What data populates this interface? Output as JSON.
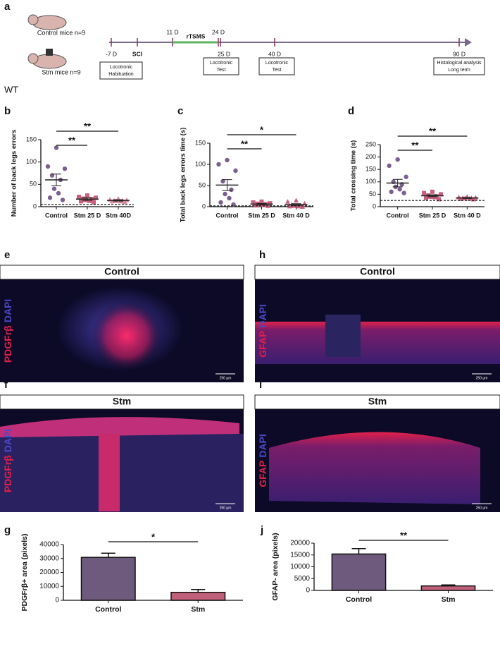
{
  "timeline": {
    "panel": "a",
    "groups": [
      "Control mice n=9",
      "Stm mice n=9"
    ],
    "marks": [
      "-7 D",
      "SCI",
      "11 D",
      "24 D",
      "25 D",
      "40 D",
      "90 D"
    ],
    "treatment": "rTSMS",
    "boxes": [
      [
        "Locotronic",
        "Habituation"
      ],
      [
        "Locotronic",
        "Test"
      ],
      [
        "Locotronic",
        "Test"
      ],
      [
        "Histological analysis",
        "Long term"
      ]
    ],
    "genotype": "WT"
  },
  "images": [
    {
      "panel": "e",
      "title": "Control",
      "stain": [
        "PDGFrβ",
        "DAPI"
      ],
      "scale": "250 µm"
    },
    {
      "panel": "f",
      "title": "Stm",
      "stain": [
        "PDGFrβ",
        "DAPI"
      ],
      "scale": "250 µm"
    },
    {
      "panel": "h",
      "title": "Control",
      "stain": [
        "GFAP",
        "DAPI"
      ],
      "scale": "250 µm"
    },
    {
      "panel": "i",
      "title": "Stm",
      "stain": [
        "GFAP",
        "DAPI"
      ],
      "scale": "250 µm"
    }
  ],
  "chart_data": [
    {
      "type": "scatter",
      "panel": "b",
      "y_label": "Number of back legs errors",
      "categories": [
        "Control",
        "Stm 25 D",
        "Stm 40D"
      ],
      "values": [
        [
          132,
          90,
          85,
          70,
          60,
          40,
          30,
          20,
          15
        ],
        [
          25,
          22,
          20,
          18,
          17,
          15,
          13,
          12,
          10
        ],
        [
          18,
          16,
          15,
          14,
          14,
          13,
          12,
          12,
          11
        ]
      ],
      "means": [
        60,
        17,
        14
      ],
      "sems": [
        13,
        3,
        1.5
      ],
      "colors": [
        "#7b5f8e",
        "#c8607f",
        "#d9869c"
      ],
      "markers": [
        "circle",
        "square",
        "triangle"
      ],
      "ylim": [
        0,
        150
      ],
      "yticks": [
        0,
        50,
        100,
        150
      ],
      "reference_line": 5,
      "significance": [
        "**",
        "**"
      ]
    },
    {
      "type": "scatter",
      "panel": "c",
      "y_label": "Total back legs errors time (s)",
      "categories": [
        "Control",
        "Stm 25 D",
        "Stm 40 D"
      ],
      "values": [
        [
          110,
          100,
          85,
          60,
          40,
          30,
          20,
          10,
          5
        ],
        [
          12,
          10,
          8,
          7,
          6,
          5,
          4,
          3,
          2
        ],
        [
          15,
          12,
          8,
          5,
          3,
          2,
          1,
          1,
          0
        ]
      ],
      "means": [
        51,
        6,
        5
      ],
      "sems": [
        13,
        1.5,
        2
      ],
      "colors": [
        "#7b5f8e",
        "#c8607f",
        "#c8607f"
      ],
      "markers": [
        "circle",
        "square",
        "triangle"
      ],
      "ylim": [
        0,
        150
      ],
      "yticks": [
        0,
        50,
        100,
        150
      ],
      "reference_line": 2,
      "significance": [
        "**",
        "*"
      ]
    },
    {
      "type": "scatter",
      "panel": "d",
      "y_label": "Total crossing time (s)",
      "categories": [
        "Control",
        "Stm 25 D",
        "Stm 40 D"
      ],
      "values": [
        [
          190,
          165,
          120,
          100,
          90,
          80,
          70,
          60,
          55
        ],
        [
          60,
          55,
          50,
          45,
          42,
          40,
          38,
          35,
          30
        ],
        [
          40,
          38,
          37,
          36,
          35,
          34,
          33,
          32,
          30
        ]
      ],
      "means": [
        95,
        44,
        35
      ],
      "sems": [
        15,
        4,
        2
      ],
      "colors": [
        "#7b5f8e",
        "#c8607f",
        "#c8607f"
      ],
      "markers": [
        "circle",
        "square",
        "triangle"
      ],
      "ylim": [
        0,
        250
      ],
      "yticks": [
        0,
        50,
        100,
        150,
        200,
        250
      ],
      "reference_line": 25,
      "significance": [
        "**",
        "**"
      ]
    },
    {
      "type": "bar",
      "panel": "g",
      "y_label": "PDGFrβ+ area (pixels)",
      "categories": [
        "Control",
        "Stm"
      ],
      "values": [
        30800,
        5700
      ],
      "errors": [
        3000,
        2000
      ],
      "colors": [
        "#6e5a7c",
        "#c0607a"
      ],
      "ylim": [
        0,
        40000
      ],
      "yticks": [
        0,
        10000,
        20000,
        30000,
        40000
      ],
      "significance": [
        "*"
      ]
    },
    {
      "type": "bar",
      "panel": "j",
      "y_label": "GFAP- area (pixels)",
      "categories": [
        "Control",
        "Stm"
      ],
      "values": [
        15400,
        1900
      ],
      "errors": [
        2300,
        400
      ],
      "colors": [
        "#6e5a7c",
        "#c0607a"
      ],
      "ylim": [
        0,
        20000
      ],
      "yticks": [
        0,
        5000,
        10000,
        15000,
        20000
      ],
      "significance": [
        "**"
      ]
    }
  ]
}
